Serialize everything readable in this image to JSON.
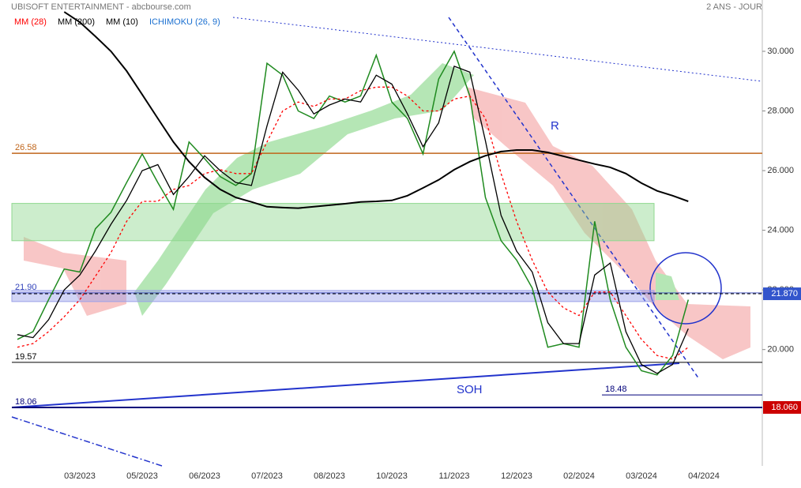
{
  "chart_data": {
    "type": "line",
    "title": "UBISOFT ENTERTAINMENT - abcbourse.com",
    "subtitle": "2 ANS - JOUR",
    "categories": [
      null,
      null,
      null,
      null,
      "03/2023",
      null,
      null,
      null,
      "05/2023",
      null,
      null,
      null,
      "06/2023",
      null,
      null,
      null,
      "07/2023",
      null,
      null,
      null,
      "08/2023",
      null,
      null,
      null,
      "10/2023",
      null,
      null,
      null,
      "11/2023",
      null,
      null,
      null,
      "12/2023",
      null,
      null,
      null,
      "02/2024",
      null,
      null,
      null,
      "03/2024",
      null,
      null,
      null,
      "04/2024"
    ],
    "price": {
      "color": "#1f8a1f",
      "values": [
        20.34,
        20.6,
        21.67,
        22.7,
        22.6,
        24.05,
        24.6,
        25.6,
        26.56,
        25.6,
        24.7,
        26.96,
        26.4,
        25.8,
        25.5,
        25.9,
        29.6,
        29.2,
        28.0,
        27.75,
        28.5,
        28.3,
        28.5,
        29.87,
        28.3,
        27.75,
        26.56,
        29.07,
        30.0,
        28.5,
        25.1,
        23.65,
        23.0,
        22.06,
        20.08,
        20.2,
        20.08,
        24.3,
        21.67,
        20.08,
        19.29,
        19.15,
        19.8,
        21.67,
        null
      ]
    },
    "series": [
      {
        "name": "MM (28)",
        "color": "#ff0000",
        "dash": true,
        "values": [
          20.08,
          20.2,
          20.6,
          21.1,
          21.67,
          22.46,
          23.25,
          24.3,
          24.97,
          24.97,
          25.37,
          25.5,
          25.9,
          26.03,
          25.9,
          25.9,
          26.96,
          28.0,
          28.3,
          28.15,
          28.4,
          28.4,
          28.68,
          28.8,
          28.8,
          28.5,
          28.0,
          28.0,
          28.4,
          28.5,
          27.75,
          25.9,
          24.3,
          23.0,
          21.93,
          21.4,
          21.14,
          21.93,
          21.93,
          21.14,
          20.34,
          19.8,
          19.68,
          20.08,
          null
        ]
      },
      {
        "name": "MM (200)",
        "color": "#000000",
        "width": 2,
        "values": [
          null,
          null,
          null,
          31.32,
          30.98,
          30.5,
          30.0,
          29.34,
          28.55,
          27.75,
          26.96,
          26.3,
          25.77,
          25.37,
          25.1,
          24.95,
          24.79,
          24.76,
          24.74,
          24.79,
          24.84,
          24.89,
          24.95,
          24.97,
          25.0,
          25.16,
          25.42,
          25.69,
          26.03,
          26.3,
          26.5,
          26.64,
          26.69,
          26.69,
          26.61,
          26.48,
          26.35,
          26.22,
          26.11,
          25.9,
          25.58,
          25.32,
          25.16,
          24.97,
          null
        ]
      },
      {
        "name": "MM (10)",
        "color": "#000000",
        "width": 1.3,
        "values": [
          20.5,
          20.4,
          21.0,
          22.0,
          22.5,
          23.3,
          24.2,
          25.0,
          26.0,
          26.2,
          25.2,
          25.8,
          26.5,
          26.0,
          25.6,
          25.5,
          27.5,
          29.3,
          28.7,
          27.9,
          28.2,
          28.4,
          28.3,
          29.2,
          28.9,
          27.9,
          26.8,
          27.6,
          29.5,
          29.3,
          27.0,
          24.5,
          23.3,
          22.6,
          20.9,
          20.2,
          20.2,
          22.5,
          22.9,
          20.6,
          19.5,
          19.2,
          19.5,
          20.7,
          null
        ]
      }
    ],
    "ichimoku": {
      "name": "ICHIMOKU (26, 9)",
      "color": "#1a6fd0"
    },
    "ylim": [
      16.1,
      31.72
    ],
    "yticks": [
      {
        "value": 20,
        "label": "20.000"
      },
      {
        "value": 22,
        "label": "22.000"
      },
      {
        "value": 24,
        "label": "24.000"
      },
      {
        "value": 26,
        "label": "26.000"
      },
      {
        "value": 28,
        "label": "28.000"
      },
      {
        "value": 30,
        "label": "30.000"
      }
    ],
    "zones": [
      {
        "range": [
          23.65,
          24.9
        ],
        "color": "#8fd88f"
      },
      {
        "range": [
          21.61,
          21.98
        ],
        "color": "#9aa0e8"
      }
    ],
    "levels": [
      {
        "value": 26.58,
        "color": "#c0651a",
        "width": 1.5
      },
      {
        "value": 21.9,
        "label": "21.90",
        "color": "#3344bb",
        "width": 0.8
      },
      {
        "value": 19.57,
        "color": "#000000",
        "width": 1
      },
      {
        "value": 18.06,
        "color": "#00007a",
        "width": 2
      },
      {
        "value": 18.48,
        "color": "#00007a",
        "width": 1,
        "short": true
      }
    ],
    "tags": [
      {
        "value": 21.87,
        "label": "21.870",
        "color": "#3355cc",
        "dash": true
      },
      {
        "value": 18.06,
        "label": "18.060",
        "color": "#cc0000"
      }
    ],
    "annotations": [
      "R",
      "SOH"
    ]
  }
}
